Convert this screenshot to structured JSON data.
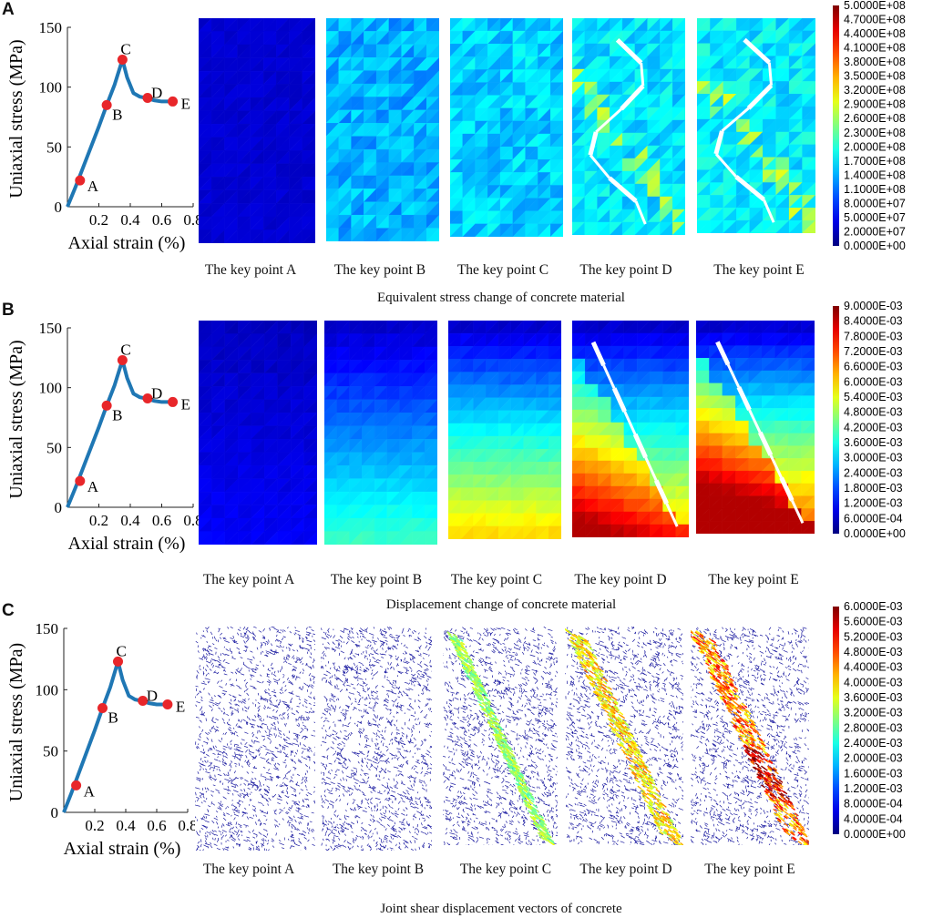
{
  "panels": [
    {
      "letter": "A",
      "title": "Equivalent stress change of concrete material",
      "captions": [
        "The key point A",
        "The key point B",
        "The key point C",
        "The key point D",
        "The key point E"
      ],
      "colorbar_labels": [
        "5.0000E+08",
        "4.7000E+08",
        "4.4000E+08",
        "4.1000E+08",
        "3.8000E+08",
        "3.5000E+08",
        "3.2000E+08",
        "2.9000E+08",
        "2.6000E+08",
        "2.3000E+08",
        "2.0000E+08",
        "1.7000E+08",
        "1.4000E+08",
        "1.1000E+08",
        "8.0000E+07",
        "5.0000E+07",
        "2.0000E+07",
        "0.0000E+00"
      ]
    },
    {
      "letter": "B",
      "title": "Displacement change of concrete material",
      "captions": [
        "The key point A",
        "The key point B",
        "The key point C",
        "The key point D",
        "The key point E"
      ],
      "colorbar_labels": [
        "9.0000E-03",
        "8.4000E-03",
        "7.8000E-03",
        "7.2000E-03",
        "6.6000E-03",
        "6.0000E-03",
        "5.4000E-03",
        "4.8000E-03",
        "4.2000E-03",
        "3.6000E-03",
        "3.0000E-03",
        "2.4000E-03",
        "1.8000E-03",
        "1.2000E-03",
        "6.0000E-04",
        "0.0000E+00"
      ]
    },
    {
      "letter": "C",
      "title": "Joint shear displacement vectors of concrete",
      "captions": [
        "The key point A",
        "The key point B",
        "The key point C",
        "The key point D",
        "The key point E"
      ],
      "colorbar_labels": [
        "6.0000E-03",
        "5.6000E-03",
        "5.2000E-03",
        "4.8000E-03",
        "4.4000E-03",
        "4.0000E-03",
        "3.6000E-03",
        "3.2000E-03",
        "2.8000E-03",
        "2.4000E-03",
        "2.0000E-03",
        "1.6000E-03",
        "1.2000E-03",
        "8.0000E-04",
        "4.0000E-04",
        "0.0000E+00"
      ]
    }
  ],
  "chart_data": {
    "type": "line",
    "title": "",
    "xlabel": "Axial strain (%)",
    "ylabel": "Uniaxial stress (MPa)",
    "xlim": [
      0,
      0.8
    ],
    "ylim": [
      0,
      150
    ],
    "xticks": [
      0.2,
      0.4,
      0.6,
      0.8
    ],
    "yticks": [
      0,
      50,
      100,
      150
    ],
    "series": [
      {
        "name": "stress-strain curve",
        "x": [
          0,
          0.05,
          0.1,
          0.15,
          0.2,
          0.25,
          0.3,
          0.35,
          0.38,
          0.42,
          0.46,
          0.5,
          0.55,
          0.6,
          0.65,
          0.68
        ],
        "y": [
          0,
          16,
          33,
          50,
          67,
          85,
          102,
          123,
          108,
          95,
          92,
          91,
          89,
          88,
          88,
          88
        ]
      }
    ],
    "key_points": [
      {
        "label": "A",
        "x": 0.08,
        "y": 22
      },
      {
        "label": "B",
        "x": 0.25,
        "y": 85
      },
      {
        "label": "C",
        "x": 0.35,
        "y": 123
      },
      {
        "label": "D",
        "x": 0.51,
        "y": 91
      },
      {
        "label": "E",
        "x": 0.67,
        "y": 88
      }
    ],
    "line_color": "#1f77b4",
    "point_color": "#e8262a"
  }
}
